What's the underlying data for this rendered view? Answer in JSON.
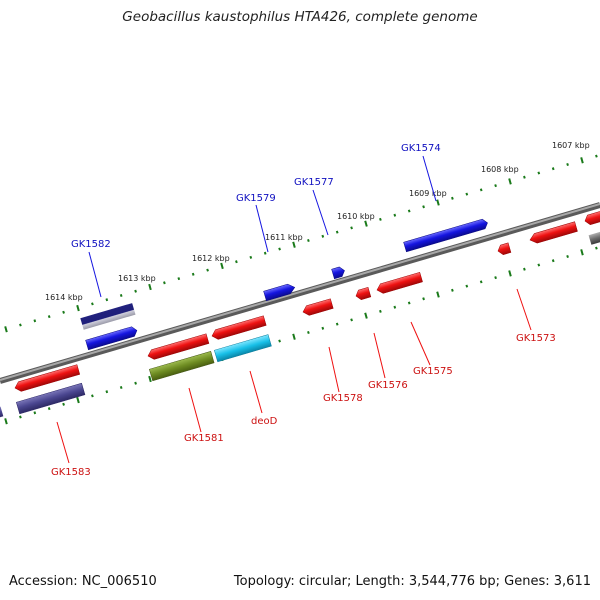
{
  "title": "Geobacillus kaustophilus HTA426, complete genome",
  "footer": {
    "accession": "Accession: NC_006510",
    "summary": "Topology: circular; Length: 3,544,776 bp; Genes: 3,611"
  },
  "colors": {
    "backbone": "#808080",
    "tick": "#1a7a1a",
    "forward_gene": "#1515e0",
    "reverse_gene": "#ee1111",
    "forward_label": "#1010c0",
    "reverse_label": "#cc1111",
    "olive_feature": "#6e8c22",
    "cyan_feature": "#18c0e8",
    "navy_feature": "#1e1e7a",
    "slate_feature": "#4a4690"
  },
  "kbp_labels": [
    "1607 kbp",
    "1608 kbp",
    "1609 kbp",
    "1610 kbp",
    "1611 kbp",
    "1612 kbp",
    "1613 kbp",
    "1614 kbp"
  ],
  "gene_labels": {
    "forward": [
      "GK1574",
      "GK1577",
      "GK1579",
      "GK1582"
    ],
    "reverse": [
      "GK1573",
      "GK1575",
      "GK1576",
      "GK1578",
      "deoD",
      "GK1581",
      "GK1583"
    ]
  }
}
